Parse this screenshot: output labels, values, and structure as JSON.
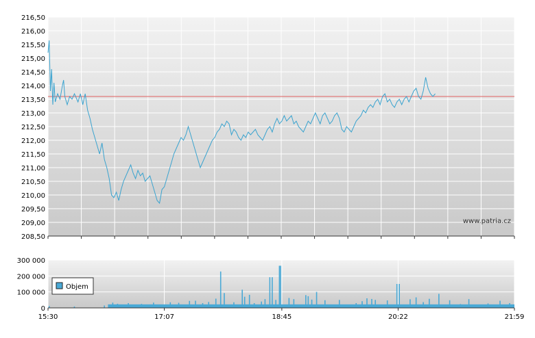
{
  "colors": {
    "line": "#3aa3cf",
    "reference": "#e06060",
    "volume_bar": "#49a9d6",
    "grid": "#ffffff",
    "axis": "#333333",
    "bg_top": "#f2f2f2",
    "bg_bottom": "#c9c9c9"
  },
  "watermark": "www.patria.cz",
  "legend": {
    "label": "Objem",
    "icon": "square-swatch-icon"
  },
  "chart_data": [
    {
      "type": "line",
      "xlabel": "",
      "ylabel": "",
      "x_domain": [
        "15:30",
        "21:59"
      ],
      "x_ticks": [
        "15:30",
        "17:07",
        "18:45",
        "20:22",
        "21:59"
      ],
      "ylim": [
        208.5,
        216.5
      ],
      "y_ticks": [
        "208,50",
        "209,00",
        "209,50",
        "210,00",
        "210,50",
        "211,00",
        "211,50",
        "212,00",
        "212,50",
        "213,00",
        "213,50",
        "214,00",
        "214,50",
        "215,00",
        "215,50",
        "216,00",
        "216,50"
      ],
      "reference_line": 213.6,
      "grid": true,
      "series": [
        {
          "points": [
            [
              "15:30",
              215.2
            ],
            [
              "15:31",
              215.65
            ],
            [
              "15:32",
              213.8
            ],
            [
              "15:33",
              214.6
            ],
            [
              "15:34",
              213.3
            ],
            [
              "15:35",
              214.1
            ],
            [
              "15:36",
              213.4
            ],
            [
              "15:38",
              213.7
            ],
            [
              "15:40",
              213.5
            ],
            [
              "15:42",
              214.0
            ],
            [
              "15:43",
              214.2
            ],
            [
              "15:44",
              213.6
            ],
            [
              "15:46",
              213.3
            ],
            [
              "15:48",
              213.6
            ],
            [
              "15:50",
              213.5
            ],
            [
              "15:52",
              213.7
            ],
            [
              "15:55",
              213.4
            ],
            [
              "15:57",
              213.7
            ],
            [
              "15:59",
              213.3
            ],
            [
              "16:01",
              213.7
            ],
            [
              "16:03",
              213.1
            ],
            [
              "16:05",
              212.8
            ],
            [
              "16:07",
              212.4
            ],
            [
              "16:09",
              212.1
            ],
            [
              "16:11",
              211.8
            ],
            [
              "16:13",
              211.5
            ],
            [
              "16:15",
              211.9
            ],
            [
              "16:17",
              211.3
            ],
            [
              "16:19",
              211.0
            ],
            [
              "16:21",
              210.6
            ],
            [
              "16:23",
              210.0
            ],
            [
              "16:25",
              209.9
            ],
            [
              "16:27",
              210.1
            ],
            [
              "16:29",
              209.8
            ],
            [
              "16:31",
              210.2
            ],
            [
              "16:33",
              210.5
            ],
            [
              "16:35",
              210.7
            ],
            [
              "16:37",
              210.9
            ],
            [
              "16:39",
              211.1
            ],
            [
              "16:41",
              210.8
            ],
            [
              "16:43",
              210.6
            ],
            [
              "16:45",
              210.9
            ],
            [
              "16:47",
              210.7
            ],
            [
              "16:49",
              210.8
            ],
            [
              "16:51",
              210.5
            ],
            [
              "16:53",
              210.6
            ],
            [
              "16:55",
              210.7
            ],
            [
              "16:57",
              210.4
            ],
            [
              "16:59",
              210.1
            ],
            [
              "17:01",
              209.8
            ],
            [
              "17:03",
              209.7
            ],
            [
              "17:05",
              210.2
            ],
            [
              "17:07",
              210.3
            ],
            [
              "17:09",
              210.6
            ],
            [
              "17:11",
              210.9
            ],
            [
              "17:13",
              211.2
            ],
            [
              "17:15",
              211.5
            ],
            [
              "17:17",
              211.7
            ],
            [
              "17:19",
              211.9
            ],
            [
              "17:21",
              212.1
            ],
            [
              "17:23",
              212.0
            ],
            [
              "17:25",
              212.2
            ],
            [
              "17:27",
              212.5
            ],
            [
              "17:29",
              212.2
            ],
            [
              "17:31",
              211.9
            ],
            [
              "17:33",
              211.6
            ],
            [
              "17:35",
              211.3
            ],
            [
              "17:37",
              211.0
            ],
            [
              "17:39",
              211.2
            ],
            [
              "17:41",
              211.4
            ],
            [
              "17:43",
              211.6
            ],
            [
              "17:45",
              211.8
            ],
            [
              "17:47",
              212.0
            ],
            [
              "17:49",
              212.1
            ],
            [
              "17:51",
              212.3
            ],
            [
              "17:53",
              212.4
            ],
            [
              "17:55",
              212.6
            ],
            [
              "17:57",
              212.5
            ],
            [
              "17:59",
              212.7
            ],
            [
              "18:01",
              212.6
            ],
            [
              "18:03",
              212.2
            ],
            [
              "18:05",
              212.4
            ],
            [
              "18:07",
              212.3
            ],
            [
              "18:09",
              212.1
            ],
            [
              "18:11",
              212.0
            ],
            [
              "18:13",
              212.2
            ],
            [
              "18:15",
              212.1
            ],
            [
              "18:17",
              212.3
            ],
            [
              "18:19",
              212.2
            ],
            [
              "18:21",
              212.3
            ],
            [
              "18:23",
              212.4
            ],
            [
              "18:25",
              212.2
            ],
            [
              "18:27",
              212.1
            ],
            [
              "18:29",
              212.0
            ],
            [
              "18:31",
              212.2
            ],
            [
              "18:33",
              212.4
            ],
            [
              "18:35",
              212.5
            ],
            [
              "18:37",
              212.3
            ],
            [
              "18:39",
              212.6
            ],
            [
              "18:41",
              212.8
            ],
            [
              "18:43",
              212.6
            ],
            [
              "18:45",
              212.7
            ],
            [
              "18:47",
              212.9
            ],
            [
              "18:49",
              212.7
            ],
            [
              "18:51",
              212.8
            ],
            [
              "18:53",
              212.9
            ],
            [
              "18:55",
              212.6
            ],
            [
              "18:57",
              212.7
            ],
            [
              "18:59",
              212.5
            ],
            [
              "19:01",
              212.4
            ],
            [
              "19:03",
              212.3
            ],
            [
              "19:05",
              212.5
            ],
            [
              "19:07",
              212.7
            ],
            [
              "19:09",
              212.6
            ],
            [
              "19:11",
              212.8
            ],
            [
              "19:13",
              213.0
            ],
            [
              "19:15",
              212.8
            ],
            [
              "19:17",
              212.6
            ],
            [
              "19:19",
              212.9
            ],
            [
              "19:21",
              213.0
            ],
            [
              "19:23",
              212.8
            ],
            [
              "19:25",
              212.6
            ],
            [
              "19:27",
              212.7
            ],
            [
              "19:29",
              212.9
            ],
            [
              "19:31",
              213.0
            ],
            [
              "19:33",
              212.8
            ],
            [
              "19:35",
              212.4
            ],
            [
              "19:37",
              212.3
            ],
            [
              "19:39",
              212.5
            ],
            [
              "19:41",
              212.4
            ],
            [
              "19:43",
              212.3
            ],
            [
              "19:45",
              212.5
            ],
            [
              "19:47",
              212.7
            ],
            [
              "19:49",
              212.8
            ],
            [
              "19:51",
              212.9
            ],
            [
              "19:53",
              213.1
            ],
            [
              "19:55",
              213.0
            ],
            [
              "19:57",
              213.2
            ],
            [
              "19:59",
              213.3
            ],
            [
              "20:01",
              213.2
            ],
            [
              "20:03",
              213.4
            ],
            [
              "20:05",
              213.5
            ],
            [
              "20:07",
              213.3
            ],
            [
              "20:09",
              213.6
            ],
            [
              "20:11",
              213.7
            ],
            [
              "20:13",
              213.4
            ],
            [
              "20:15",
              213.5
            ],
            [
              "20:17",
              213.3
            ],
            [
              "20:19",
              213.2
            ],
            [
              "20:21",
              213.4
            ],
            [
              "20:23",
              213.5
            ],
            [
              "20:25",
              213.3
            ],
            [
              "20:27",
              213.5
            ],
            [
              "20:29",
              213.6
            ],
            [
              "20:31",
              213.4
            ],
            [
              "20:33",
              213.6
            ],
            [
              "20:35",
              213.8
            ],
            [
              "20:37",
              213.9
            ],
            [
              "20:39",
              213.6
            ],
            [
              "20:41",
              213.5
            ],
            [
              "20:43",
              213.8
            ],
            [
              "20:45",
              214.3
            ],
            [
              "20:47",
              213.9
            ],
            [
              "20:49",
              213.7
            ],
            [
              "20:51",
              213.6
            ],
            [
              "20:53",
              213.7
            ]
          ]
        }
      ]
    },
    {
      "type": "bar",
      "xlabel": "",
      "ylabel": "",
      "x_domain": [
        "15:30",
        "21:59"
      ],
      "x_ticks": [
        "15:30",
        "17:07",
        "18:45",
        "20:22",
        "21:59"
      ],
      "ylim": [
        0,
        300000
      ],
      "y_ticks": [
        "0",
        "100 000",
        "200 000",
        "300 000"
      ],
      "grid": true,
      "series": [
        {
          "name": "Objem",
          "base_level": 22000,
          "spikes": [
            [
              "15:31",
              12000
            ],
            [
              "15:52",
              9000
            ],
            [
              "16:17",
              15000
            ],
            [
              "16:24",
              33000
            ],
            [
              "16:28",
              26000
            ],
            [
              "16:37",
              30000
            ],
            [
              "16:48",
              25000
            ],
            [
              "16:58",
              33000
            ],
            [
              "17:12",
              35000
            ],
            [
              "17:19",
              32000
            ],
            [
              "17:28",
              44000
            ],
            [
              "17:33",
              45000
            ],
            [
              "17:39",
              30000
            ],
            [
              "17:44",
              37000
            ],
            [
              "17:50",
              58000
            ],
            [
              "17:54",
              228000
            ],
            [
              "17:57",
              93000
            ],
            [
              "18:05",
              35000
            ],
            [
              "18:12",
              114000
            ],
            [
              "18:14",
              70000
            ],
            [
              "18:18",
              82000
            ],
            [
              "18:22",
              30000
            ],
            [
              "18:28",
              40000
            ],
            [
              "18:31",
              55000
            ],
            [
              "18:35",
              192000
            ],
            [
              "18:37",
              192000
            ],
            [
              "18:40",
              50000
            ],
            [
              "18:43",
              264000
            ],
            [
              "18:44",
              264000
            ],
            [
              "18:51",
              62000
            ],
            [
              "18:55",
              55000
            ],
            [
              "19:05",
              80000
            ],
            [
              "19:07",
              73000
            ],
            [
              "19:10",
              52000
            ],
            [
              "19:14",
              100000
            ],
            [
              "19:21",
              48000
            ],
            [
              "19:33",
              50000
            ],
            [
              "19:47",
              30000
            ],
            [
              "19:52",
              42000
            ],
            [
              "19:56",
              60000
            ],
            [
              "20:00",
              56000
            ],
            [
              "20:03",
              50000
            ],
            [
              "20:13",
              47000
            ],
            [
              "20:21",
              150000
            ],
            [
              "20:23",
              150000
            ],
            [
              "20:32",
              54000
            ],
            [
              "20:37",
              66000
            ],
            [
              "20:43",
              36000
            ],
            [
              "20:48",
              57000
            ],
            [
              "20:56",
              88000
            ],
            [
              "21:05",
              48000
            ],
            [
              "21:14",
              24000
            ],
            [
              "21:21",
              55000
            ],
            [
              "21:37",
              28000
            ],
            [
              "21:47",
              45000
            ],
            [
              "21:55",
              30000
            ]
          ]
        }
      ]
    }
  ]
}
